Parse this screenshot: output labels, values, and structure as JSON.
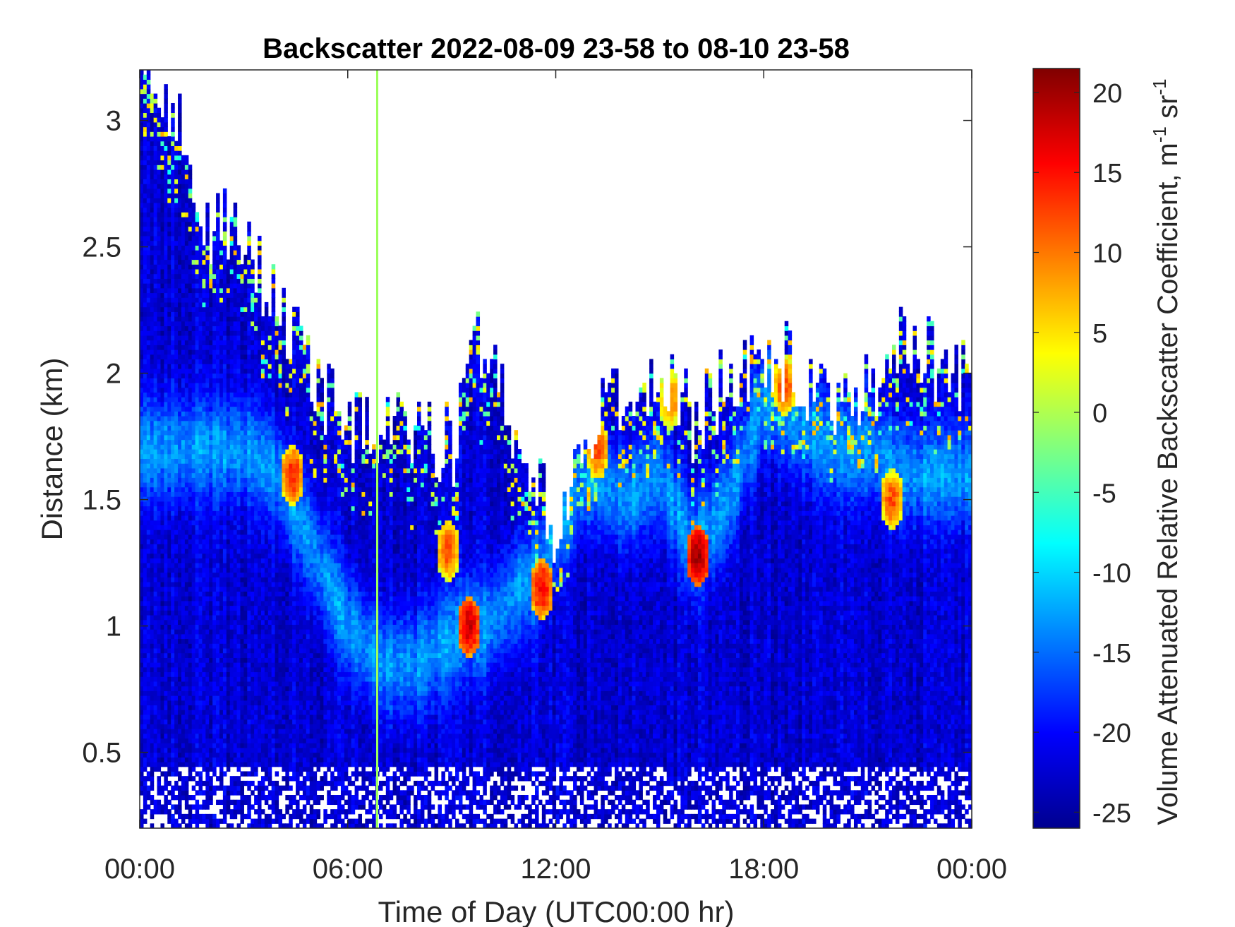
{
  "chart_data": {
    "type": "heatmap",
    "title": "Backscatter 2022-08-09 23-58 to 08-10 23-58",
    "xlabel": "Time of Day (UTC00:00 hr)",
    "ylabel": "Distance (km)",
    "colorbar_label_main": "Volume Attenuated Relative Backscatter Coefficient, m",
    "colorbar_label_sup1": "-1",
    "colorbar_label_mid": " sr",
    "colorbar_label_sup2": "-1",
    "xlim_hours": [
      0,
      24
    ],
    "ylim_km": [
      0.2,
      3.2
    ],
    "clim": [
      -26,
      21.5
    ],
    "colormap": "jet",
    "x_ticks": [
      {
        "hour": 0,
        "label": "00:00"
      },
      {
        "hour": 6,
        "label": "06:00"
      },
      {
        "hour": 12,
        "label": "12:00"
      },
      {
        "hour": 18,
        "label": "18:00"
      },
      {
        "hour": 24,
        "label": "00:00"
      }
    ],
    "y_ticks": [
      {
        "value": 0.5,
        "label": "0.5"
      },
      {
        "value": 1,
        "label": "1"
      },
      {
        "value": 1.5,
        "label": "1.5"
      },
      {
        "value": 2,
        "label": "2"
      },
      {
        "value": 2.5,
        "label": "2.5"
      },
      {
        "value": 3,
        "label": "3"
      }
    ],
    "colorbar_ticks": [
      {
        "value": -25,
        "label": "-25"
      },
      {
        "value": -20,
        "label": "-20"
      },
      {
        "value": -15,
        "label": "-15"
      },
      {
        "value": -10,
        "label": "-10"
      },
      {
        "value": -5,
        "label": "-5"
      },
      {
        "value": 0,
        "label": "0"
      },
      {
        "value": 5,
        "label": "5"
      },
      {
        "value": 10,
        "label": "10"
      },
      {
        "value": 15,
        "label": "15"
      },
      {
        "value": 20,
        "label": "20"
      }
    ],
    "aerosol_layer_top_km": {
      "hours": [
        0,
        1,
        2,
        3,
        4,
        5,
        6,
        7,
        8,
        9,
        10,
        11,
        12,
        13,
        14,
        15,
        16,
        17,
        18,
        19,
        20,
        21,
        22,
        23,
        24
      ],
      "values": [
        3.2,
        3.0,
        2.6,
        2.5,
        2.3,
        2.0,
        1.8,
        1.8,
        1.8,
        1.7,
        2.2,
        1.6,
        1.4,
        1.8,
        1.9,
        2.0,
        1.8,
        2.0,
        2.1,
        2.0,
        1.9,
        1.9,
        2.1,
        2.05,
        2.0
      ]
    },
    "strong_layer_height_km": {
      "hours": [
        3,
        4,
        5,
        6,
        7,
        8,
        9,
        9.5,
        10,
        11,
        11.5,
        12,
        13,
        14,
        15,
        16,
        17,
        18,
        19,
        20,
        21,
        22
      ],
      "values": [
        1.7,
        1.6,
        1.3,
        1.0,
        0.85,
        0.85,
        0.95,
        1.0,
        1.0,
        1.15,
        1.2,
        1.4,
        1.6,
        1.5,
        1.6,
        1.3,
        1.5,
        1.9,
        1.8,
        1.7,
        1.7,
        1.6
      ]
    },
    "peak_backscatter_hotspots": [
      {
        "hour": 9.5,
        "km": 1.0,
        "value": 18
      },
      {
        "hour": 11.6,
        "km": 1.15,
        "value": 16
      },
      {
        "hour": 16.1,
        "km": 1.28,
        "value": 20
      },
      {
        "hour": 13.2,
        "km": 1.7,
        "value": 12
      },
      {
        "hour": 18.6,
        "km": 1.95,
        "value": 12
      },
      {
        "hour": 4.4,
        "km": 1.6,
        "value": 14
      },
      {
        "hour": 8.9,
        "km": 1.3,
        "value": 12
      },
      {
        "hour": 15.3,
        "km": 1.9,
        "value": 10
      },
      {
        "hour": 21.7,
        "km": 1.5,
        "value": 12
      }
    ],
    "vertical_artifact_hour": 6.85
  }
}
